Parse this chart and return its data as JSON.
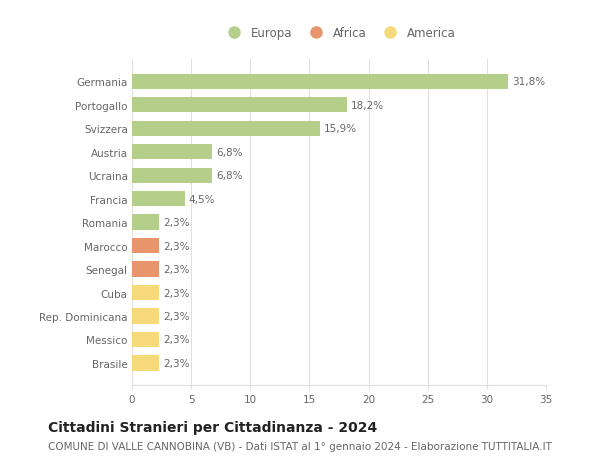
{
  "categories": [
    "Brasile",
    "Messico",
    "Rep. Dominicana",
    "Cuba",
    "Senegal",
    "Marocco",
    "Romania",
    "Francia",
    "Ucraina",
    "Austria",
    "Svizzera",
    "Portogallo",
    "Germania"
  ],
  "values": [
    2.3,
    2.3,
    2.3,
    2.3,
    2.3,
    2.3,
    2.3,
    4.5,
    6.8,
    6.8,
    15.9,
    18.2,
    31.8
  ],
  "labels": [
    "2,3%",
    "2,3%",
    "2,3%",
    "2,3%",
    "2,3%",
    "2,3%",
    "2,3%",
    "4,5%",
    "6,8%",
    "6,8%",
    "15,9%",
    "18,2%",
    "31,8%"
  ],
  "colors": [
    "#f5d97a",
    "#f5d97a",
    "#f5d97a",
    "#f5d97a",
    "#e8956d",
    "#e8956d",
    "#b5ce8a",
    "#b5ce8a",
    "#b5ce8a",
    "#b5ce8a",
    "#b5ce8a",
    "#b5ce8a",
    "#b5ce8a"
  ],
  "legend_items": [
    {
      "label": "Europa",
      "color": "#b5ce8a"
    },
    {
      "label": "Africa",
      "color": "#e8956d"
    },
    {
      "label": "America",
      "color": "#f5d97a"
    }
  ],
  "xlim": [
    0,
    35
  ],
  "xticks": [
    0,
    5,
    10,
    15,
    20,
    25,
    30,
    35
  ],
  "title": "Cittadini Stranieri per Cittadinanza - 2024",
  "subtitle": "COMUNE DI VALLE CANNOBINA (VB) - Dati ISTAT al 1° gennaio 2024 - Elaborazione TUTTITALIA.IT",
  "background_color": "#ffffff",
  "grid_color": "#e0e0e0",
  "bar_height": 0.65,
  "title_fontsize": 10,
  "subtitle_fontsize": 7.5,
  "label_fontsize": 7.5,
  "tick_fontsize": 7.5,
  "legend_fontsize": 8.5
}
